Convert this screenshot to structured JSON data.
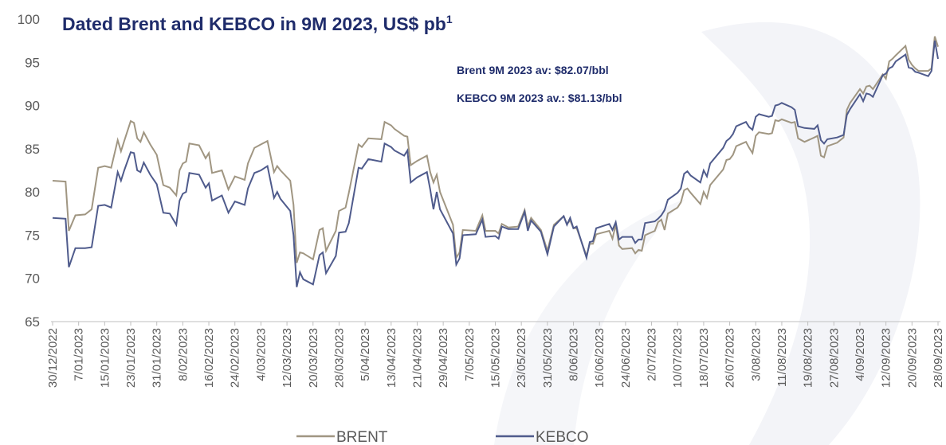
{
  "chart_data": {
    "type": "line",
    "title": "Dated Brent and KEBCO in 9M 2023, US$ pb",
    "title_superscript": "1",
    "annotations": [
      "Brent 9M 2023 av: $82.07/bbl",
      "KEBCO 9M 2023 av.: $81.13/bbl"
    ],
    "x": [
      "30/12/2022",
      "3/01/2023",
      "4/01/2023",
      "6/01/2023",
      "9/01/2023",
      "11/01/2023",
      "13/01/2023",
      "15/01/2023",
      "17/01/2023",
      "19/01/2023",
      "20/01/2023",
      "21/01/2023",
      "23/01/2023",
      "24/01/2023",
      "25/01/2023",
      "26/01/2023",
      "27/01/2023",
      "29/01/2023",
      "31/01/2023",
      "2/02/2023",
      "4/02/2023",
      "6/02/2023",
      "7/02/2023",
      "8/02/2023",
      "9/02/2023",
      "10/02/2023",
      "13/02/2023",
      "15/02/2023",
      "16/02/2023",
      "17/02/2023",
      "20/02/2023",
      "22/02/2023",
      "24/02/2023",
      "27/02/2023",
      "28/02/2023",
      "2/03/2023",
      "4/03/2023",
      "6/03/2023",
      "8/03/2023",
      "9/03/2023",
      "10/03/2023",
      "13/03/2023",
      "14/03/2023",
      "15/03/2023",
      "16/03/2023",
      "17/03/2023",
      "20/03/2023",
      "22/03/2023",
      "23/03/2023",
      "24/03/2023",
      "27/03/2023",
      "28/03/2023",
      "30/03/2023",
      "31/03/2023",
      "3/04/2023",
      "4/04/2023",
      "6/04/2023",
      "10/04/2023",
      "11/04/2023",
      "13/04/2023",
      "14/04/2023",
      "17/04/2023",
      "18/04/2023",
      "19/04/2023",
      "21/04/2023",
      "24/04/2023",
      "25/04/2023",
      "26/04/2023",
      "27/04/2023",
      "28/04/2023",
      "2/05/2023",
      "3/05/2023",
      "4/05/2023",
      "5/05/2023",
      "9/05/2023",
      "11/05/2023",
      "12/05/2023",
      "15/05/2023",
      "16/05/2023",
      "17/05/2023",
      "19/05/2023",
      "22/05/2023",
      "24/05/2023",
      "25/05/2023",
      "26/05/2023",
      "29/05/2023",
      "31/05/2023",
      "2/06/2023",
      "5/06/2023",
      "6/06/2023",
      "7/06/2023",
      "8/06/2023",
      "9/06/2023",
      "12/06/2023",
      "13/06/2023",
      "14/06/2023",
      "15/06/2023",
      "19/06/2023",
      "20/06/2023",
      "21/06/2023",
      "22/06/2023",
      "23/06/2023",
      "26/06/2023",
      "27/06/2023",
      "28/06/2023",
      "29/06/2023",
      "30/06/2023",
      "3/07/2023",
      "4/07/2023",
      "5/07/2023",
      "6/07/2023",
      "7/07/2023",
      "10/07/2023",
      "11/07/2023",
      "12/07/2023",
      "13/07/2023",
      "14/07/2023",
      "17/07/2023",
      "18/07/2023",
      "19/07/2023",
      "20/07/2023",
      "24/07/2023",
      "25/07/2023",
      "26/07/2023",
      "27/07/2023",
      "28/07/2023",
      "31/07/2023",
      "1/08/2023",
      "2/08/2023",
      "3/08/2023",
      "4/08/2023",
      "7/08/2023",
      "8/08/2023",
      "9/08/2023",
      "10/08/2023",
      "11/08/2023",
      "14/08/2023",
      "15/08/2023",
      "16/08/2023",
      "18/08/2023",
      "21/08/2023",
      "22/08/2023",
      "23/08/2023",
      "24/08/2023",
      "25/08/2023",
      "28/08/2023",
      "30/08/2023",
      "31/08/2023",
      "1/09/2023",
      "4/09/2023",
      "5/09/2023",
      "6/09/2023",
      "7/09/2023",
      "8/09/2023",
      "11/09/2023",
      "12/09/2023",
      "13/09/2023",
      "14/09/2023",
      "15/09/2023",
      "18/09/2023",
      "19/09/2023",
      "20/09/2023",
      "21/09/2023",
      "22/09/2023",
      "25/09/2023",
      "26/09/2023",
      "27/09/2023",
      "28/09/2023"
    ],
    "series": [
      {
        "name": "BRENT",
        "color": "#a09682",
        "values": [
          81.3,
          81.2,
          75.5,
          77.3,
          77.4,
          78,
          82.8,
          83,
          82.8,
          86,
          84.7,
          85.9,
          88.2,
          88,
          86.2,
          85.8,
          86.9,
          85.5,
          84.3,
          80.8,
          80.5,
          79.6,
          82.5,
          83.3,
          83.5,
          85.6,
          85.4,
          83.9,
          84.5,
          82.2,
          82.5,
          80.3,
          81.8,
          81.4,
          83.3,
          85.1,
          85.5,
          85.9,
          82.3,
          83,
          82.5,
          81.3,
          78.5,
          71.8,
          73,
          72.9,
          72.2,
          75.6,
          75.8,
          73.2,
          75.5,
          77.8,
          78.2,
          79.9,
          85.5,
          85.2,
          86.2,
          86.1,
          88.1,
          87.7,
          87.3,
          86.5,
          86.4,
          83.1,
          83.6,
          84.2,
          82.3,
          81.1,
          82,
          80,
          76.2,
          72.4,
          73,
          75.6,
          75.5,
          77.3,
          75.5,
          75.5,
          75.2,
          76.3,
          75.9,
          76,
          77.9,
          76,
          77,
          75.6,
          73.2,
          76.2,
          77.2,
          76.3,
          76.7,
          75.8,
          75.8,
          72.6,
          74,
          74,
          75.1,
          75.5,
          74.6,
          76.2,
          73.8,
          73.4,
          73.5,
          72.9,
          73.3,
          73.2,
          75,
          75.5,
          76.5,
          76.8,
          75.6,
          77.5,
          78.2,
          78.8,
          80.2,
          80.4,
          79.9,
          78.6,
          80,
          79.3,
          80.8,
          82.6,
          83.7,
          83.8,
          84.3,
          85.3,
          85.8,
          85.1,
          84.5,
          86.5,
          86.9,
          86.7,
          86.8,
          88.3,
          88.2,
          88.4,
          88,
          88.1,
          86.2,
          85.8,
          86.3,
          86.5,
          84.2,
          84,
          85.3,
          85.7,
          86.3,
          89.5,
          90.3,
          91.9,
          91.4,
          92.2,
          92.3,
          91.9,
          93.6,
          93.1,
          95.1,
          95.4,
          95.8,
          96.9,
          95.3,
          94.7,
          94.3,
          94,
          94,
          94.3,
          98,
          96.8
        ]
      },
      {
        "name": "KEBCO",
        "color": "#4f5b8c",
        "values": [
          77,
          76.9,
          71.3,
          73.5,
          73.5,
          73.6,
          78.4,
          78.5,
          78.2,
          82.3,
          81.3,
          82.5,
          84.6,
          84.5,
          82.5,
          82.3,
          83.4,
          82,
          80.9,
          77.6,
          77.5,
          76.2,
          79,
          79.8,
          80,
          82.2,
          82,
          80.5,
          81,
          79,
          79.6,
          77.6,
          78.9,
          78.5,
          80.4,
          82.2,
          82.5,
          83,
          79.3,
          80,
          79.2,
          77.8,
          75,
          69,
          70.7,
          69.9,
          69.3,
          72.7,
          73,
          70.6,
          72.6,
          75.3,
          75.4,
          76.4,
          82.8,
          82.7,
          83.8,
          83.5,
          85.6,
          85.2,
          84.8,
          84.2,
          84.8,
          81.1,
          81.7,
          82.3,
          80.3,
          78,
          80,
          78,
          75.2,
          71.6,
          72.3,
          75,
          75.1,
          76.8,
          74.8,
          74.9,
          74.6,
          76,
          75.7,
          75.7,
          77.7,
          75.5,
          76.7,
          75.4,
          72.8,
          76,
          77.2,
          76.2,
          77,
          75.8,
          76,
          72.4,
          74.2,
          74.3,
          75.8,
          76.3,
          75.6,
          76.5,
          74.5,
          74.8,
          74.8,
          74.1,
          74.5,
          74.5,
          76.4,
          76.6,
          76.9,
          77.3,
          77.9,
          79.1,
          79.9,
          80.4,
          82.1,
          82.4,
          81.9,
          81.1,
          82.5,
          81.8,
          83.3,
          85.1,
          85.9,
          86.2,
          86.7,
          87.6,
          88.1,
          87.5,
          87.2,
          88.7,
          89,
          88.7,
          88.8,
          90,
          90.1,
          90.3,
          89.8,
          89.5,
          87.6,
          87.4,
          87.3,
          87.7,
          86,
          85.6,
          86.1,
          86.3,
          86.6,
          88.9,
          89.6,
          91.3,
          90.5,
          91.4,
          91.3,
          91,
          93.5,
          93.7,
          94.3,
          94.5,
          95.1,
          95.9,
          94.4,
          94.3,
          93.9,
          93.8,
          93.4,
          94,
          97.5,
          95.4
        ]
      }
    ],
    "xlim": [
      "30/12/2022",
      "28/09/2023"
    ],
    "xticks": [
      "30/12/2022",
      "7/01/2023",
      "15/01/2023",
      "23/01/2023",
      "31/01/2023",
      "8/02/2023",
      "16/02/2023",
      "24/02/2023",
      "4/03/2023",
      "12/03/2023",
      "20/03/2023",
      "28/03/2023",
      "5/04/2023",
      "13/04/2023",
      "21/04/2023",
      "29/04/2023",
      "7/05/2023",
      "15/05/2023",
      "23/05/2023",
      "31/05/2023",
      "8/06/2023",
      "16/06/2023",
      "24/06/2023",
      "2/07/2023",
      "10/07/2023",
      "18/07/2023",
      "26/07/2023",
      "3/08/2023",
      "11/08/2023",
      "19/08/2023",
      "27/08/2023",
      "4/09/2023",
      "12/09/2023",
      "20/09/2023",
      "28/09/2023"
    ],
    "ylim": [
      65,
      100
    ],
    "yticks": [
      65,
      70,
      75,
      80,
      85,
      90,
      95,
      100
    ]
  }
}
